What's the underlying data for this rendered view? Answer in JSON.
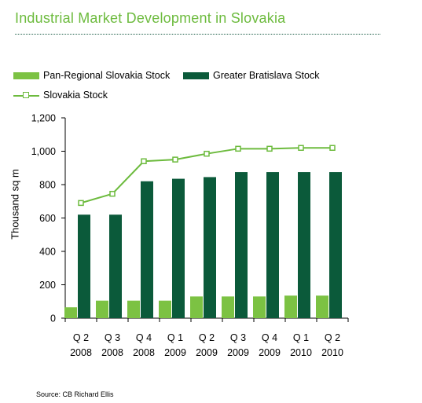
{
  "page": {
    "title": "Industrial Market Development in Slovakia",
    "source": "Source: CB Richard Ellis"
  },
  "chart_data": {
    "type": "bar",
    "ylabel": "Thousand sq m",
    "ylim": [
      0,
      1200
    ],
    "yticks": [
      0,
      200,
      400,
      600,
      800,
      1000,
      1200
    ],
    "ytick_labels": [
      "0",
      "200",
      "400",
      "600",
      "800",
      "1,000",
      "1,200"
    ],
    "categories": [
      "Q 2 2008",
      "Q 3 2008",
      "Q 4 2008",
      "Q 1 2009",
      "Q 2 2009",
      "Q 3 2009",
      "Q 4 2009",
      "Q 1 2010",
      "Q 2 2010"
    ],
    "category_lines": [
      [
        "Q 2",
        "2008"
      ],
      [
        "Q 3",
        "2008"
      ],
      [
        "Q 4",
        "2008"
      ],
      [
        "Q 1",
        "2009"
      ],
      [
        "Q 2",
        "2009"
      ],
      [
        "Q 3",
        "2009"
      ],
      [
        "Q 4",
        "2009"
      ],
      [
        "Q 1",
        "2010"
      ],
      [
        "Q 2",
        "2010"
      ]
    ],
    "series": [
      {
        "name": "Pan-Regional Slovakia Stock",
        "kind": "bar",
        "color": "#7cc243",
        "values": [
          65,
          105,
          105,
          105,
          130,
          130,
          130,
          135,
          135
        ]
      },
      {
        "name": "Greater Bratislava Stock",
        "kind": "bar",
        "color": "#0b5a3a",
        "values": [
          620,
          620,
          820,
          835,
          845,
          875,
          875,
          875,
          875
        ]
      },
      {
        "name": "Slovakia Stock",
        "kind": "line",
        "color": "#6dbb3e",
        "values": [
          690,
          745,
          940,
          950,
          985,
          1015,
          1015,
          1020,
          1020
        ]
      }
    ],
    "legend_position": "top-left",
    "grid": false
  }
}
